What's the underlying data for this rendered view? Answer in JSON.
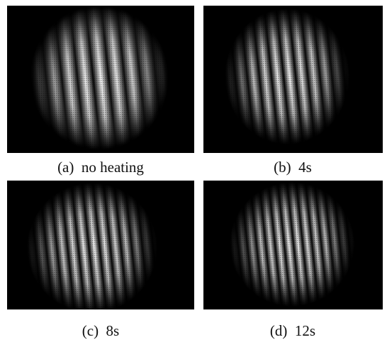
{
  "panels": [
    {
      "caption": "(a)  no heating"
    },
    {
      "caption": "(b)  4s"
    },
    {
      "caption": "(c)  8s"
    },
    {
      "caption": "(d)  12s"
    }
  ]
}
